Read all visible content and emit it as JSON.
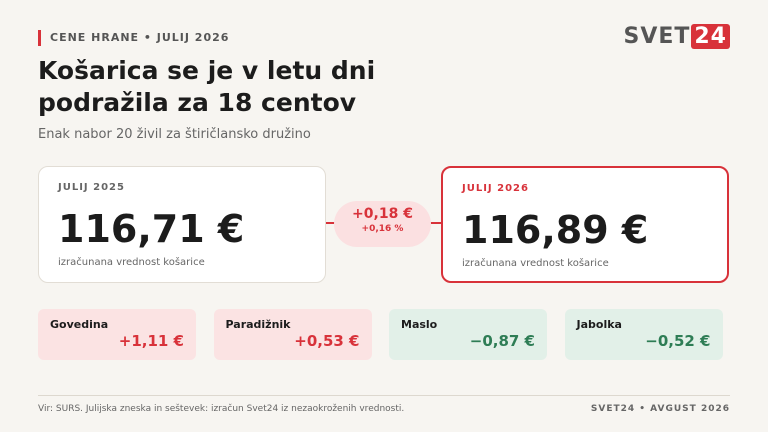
{
  "header": {
    "kicker": "CENE HRANE • JULIJ 2026",
    "title_line1": "Košarica se je v letu dni",
    "title_line2": "podražila za 18 centov",
    "subtitle": "Enak nabor 20 živil za štiričlansko družino"
  },
  "logo": {
    "word": "SVET",
    "number": "24"
  },
  "comparison": {
    "left": {
      "label": "JULIJ 2025",
      "amount": "116,71 €",
      "caption": "izračunana vrednost košarice"
    },
    "change": {
      "amount": "+0,18 €",
      "percent": "+0,16 %"
    },
    "right": {
      "label": "JULIJ 2026",
      "amount": "116,89 €",
      "caption": "izračunana vrednost košarice"
    }
  },
  "items": [
    {
      "name": "Govedina",
      "change": "+1,11 €"
    },
    {
      "name": "Paradižnik",
      "change": "+0,53 €"
    },
    {
      "name": "Maslo",
      "change": "−0,87 €"
    },
    {
      "name": "Jabolka",
      "change": "−0,52 €"
    }
  ],
  "footer": {
    "source": "Vir: SURS. Julijska zneska in seštevek: izračun Svet24 iz nezaokroženih vrednosti.",
    "credit": "SVET24 • AVGUST 2026"
  }
}
